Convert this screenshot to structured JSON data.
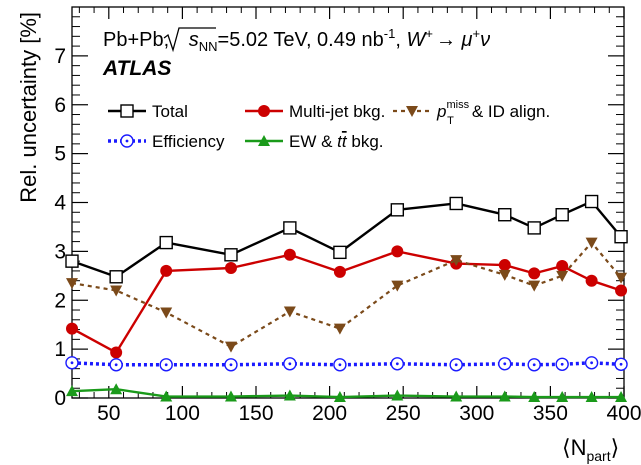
{
  "chart_data": {
    "type": "line",
    "title_line1": {
      "system": "Pb+Pb,",
      "sqrt": "s",
      "sqrt_sub": "NN",
      "energy": "=5.02 TeV, 0.49 nb",
      "lumi_sup": "-1",
      "sep": ",",
      "boson": "W",
      "boson_sup": "+",
      "arrow": "→",
      "mu": "μ",
      "mu_sup": "+",
      "nu": "ν"
    },
    "experiment": "ATLAS",
    "ylabel": "Rel. uncertainty [%]",
    "xlabel": "⟨N",
    "xlabel_sub": "part",
    "xlabel_close": "⟩",
    "xlim": [
      25,
      400
    ],
    "ylim": [
      0,
      8
    ],
    "xticks": [
      50,
      100,
      150,
      200,
      250,
      300,
      350,
      400
    ],
    "yticks": [
      0,
      1,
      2,
      3,
      4,
      5,
      6,
      7
    ],
    "x": [
      25,
      55,
      89,
      133,
      173,
      207,
      246,
      286,
      319,
      339,
      358,
      378,
      398
    ],
    "series": [
      {
        "name": "Total",
        "color": "#000000",
        "dash": "solid",
        "marker": "open-square",
        "values": [
          2.8,
          2.48,
          3.18,
          2.93,
          3.48,
          2.98,
          3.85,
          3.98,
          3.75,
          3.48,
          3.75,
          4.02,
          3.3
        ]
      },
      {
        "name": "Multi-jet bkg.",
        "color": "#cc0000",
        "dash": "solid",
        "marker": "filled-circle",
        "values": [
          1.42,
          0.93,
          2.6,
          2.66,
          2.93,
          2.58,
          3.0,
          2.75,
          2.72,
          2.55,
          2.7,
          2.4,
          2.2
        ]
      },
      {
        "name": "p_T^miss & ID align.",
        "name_parts": {
          "p": "p",
          "sup": "miss",
          "sub": "T",
          "rest": "& ID align."
        },
        "color": "#7b4a1a",
        "dash": "dotted",
        "marker": "filled-triangle-down",
        "values": [
          2.35,
          2.2,
          1.75,
          1.05,
          1.77,
          1.42,
          2.3,
          2.82,
          2.52,
          2.3,
          2.5,
          3.18,
          2.46
        ]
      },
      {
        "name": "Efficiency",
        "color": "#1a1aff",
        "dash": "dotted",
        "marker": "open-circle-dot",
        "values": [
          0.72,
          0.68,
          0.68,
          0.68,
          0.7,
          0.68,
          0.7,
          0.68,
          0.7,
          0.68,
          0.69,
          0.72,
          0.69
        ]
      },
      {
        "name": "EW & tt̄ bkg.",
        "name_parts": {
          "pre": "EW & ",
          "t1": "t",
          "t2": "t",
          "post": " bkg."
        },
        "color": "#1a9a1a",
        "dash": "solid",
        "marker": "filled-triangle-up",
        "values": [
          0.14,
          0.18,
          0.03,
          0.03,
          0.05,
          0.02,
          0.05,
          0.03,
          0.03,
          0.02,
          0.02,
          0.02,
          0.02
        ]
      }
    ],
    "legend_placement": "top-left",
    "grid": false
  }
}
